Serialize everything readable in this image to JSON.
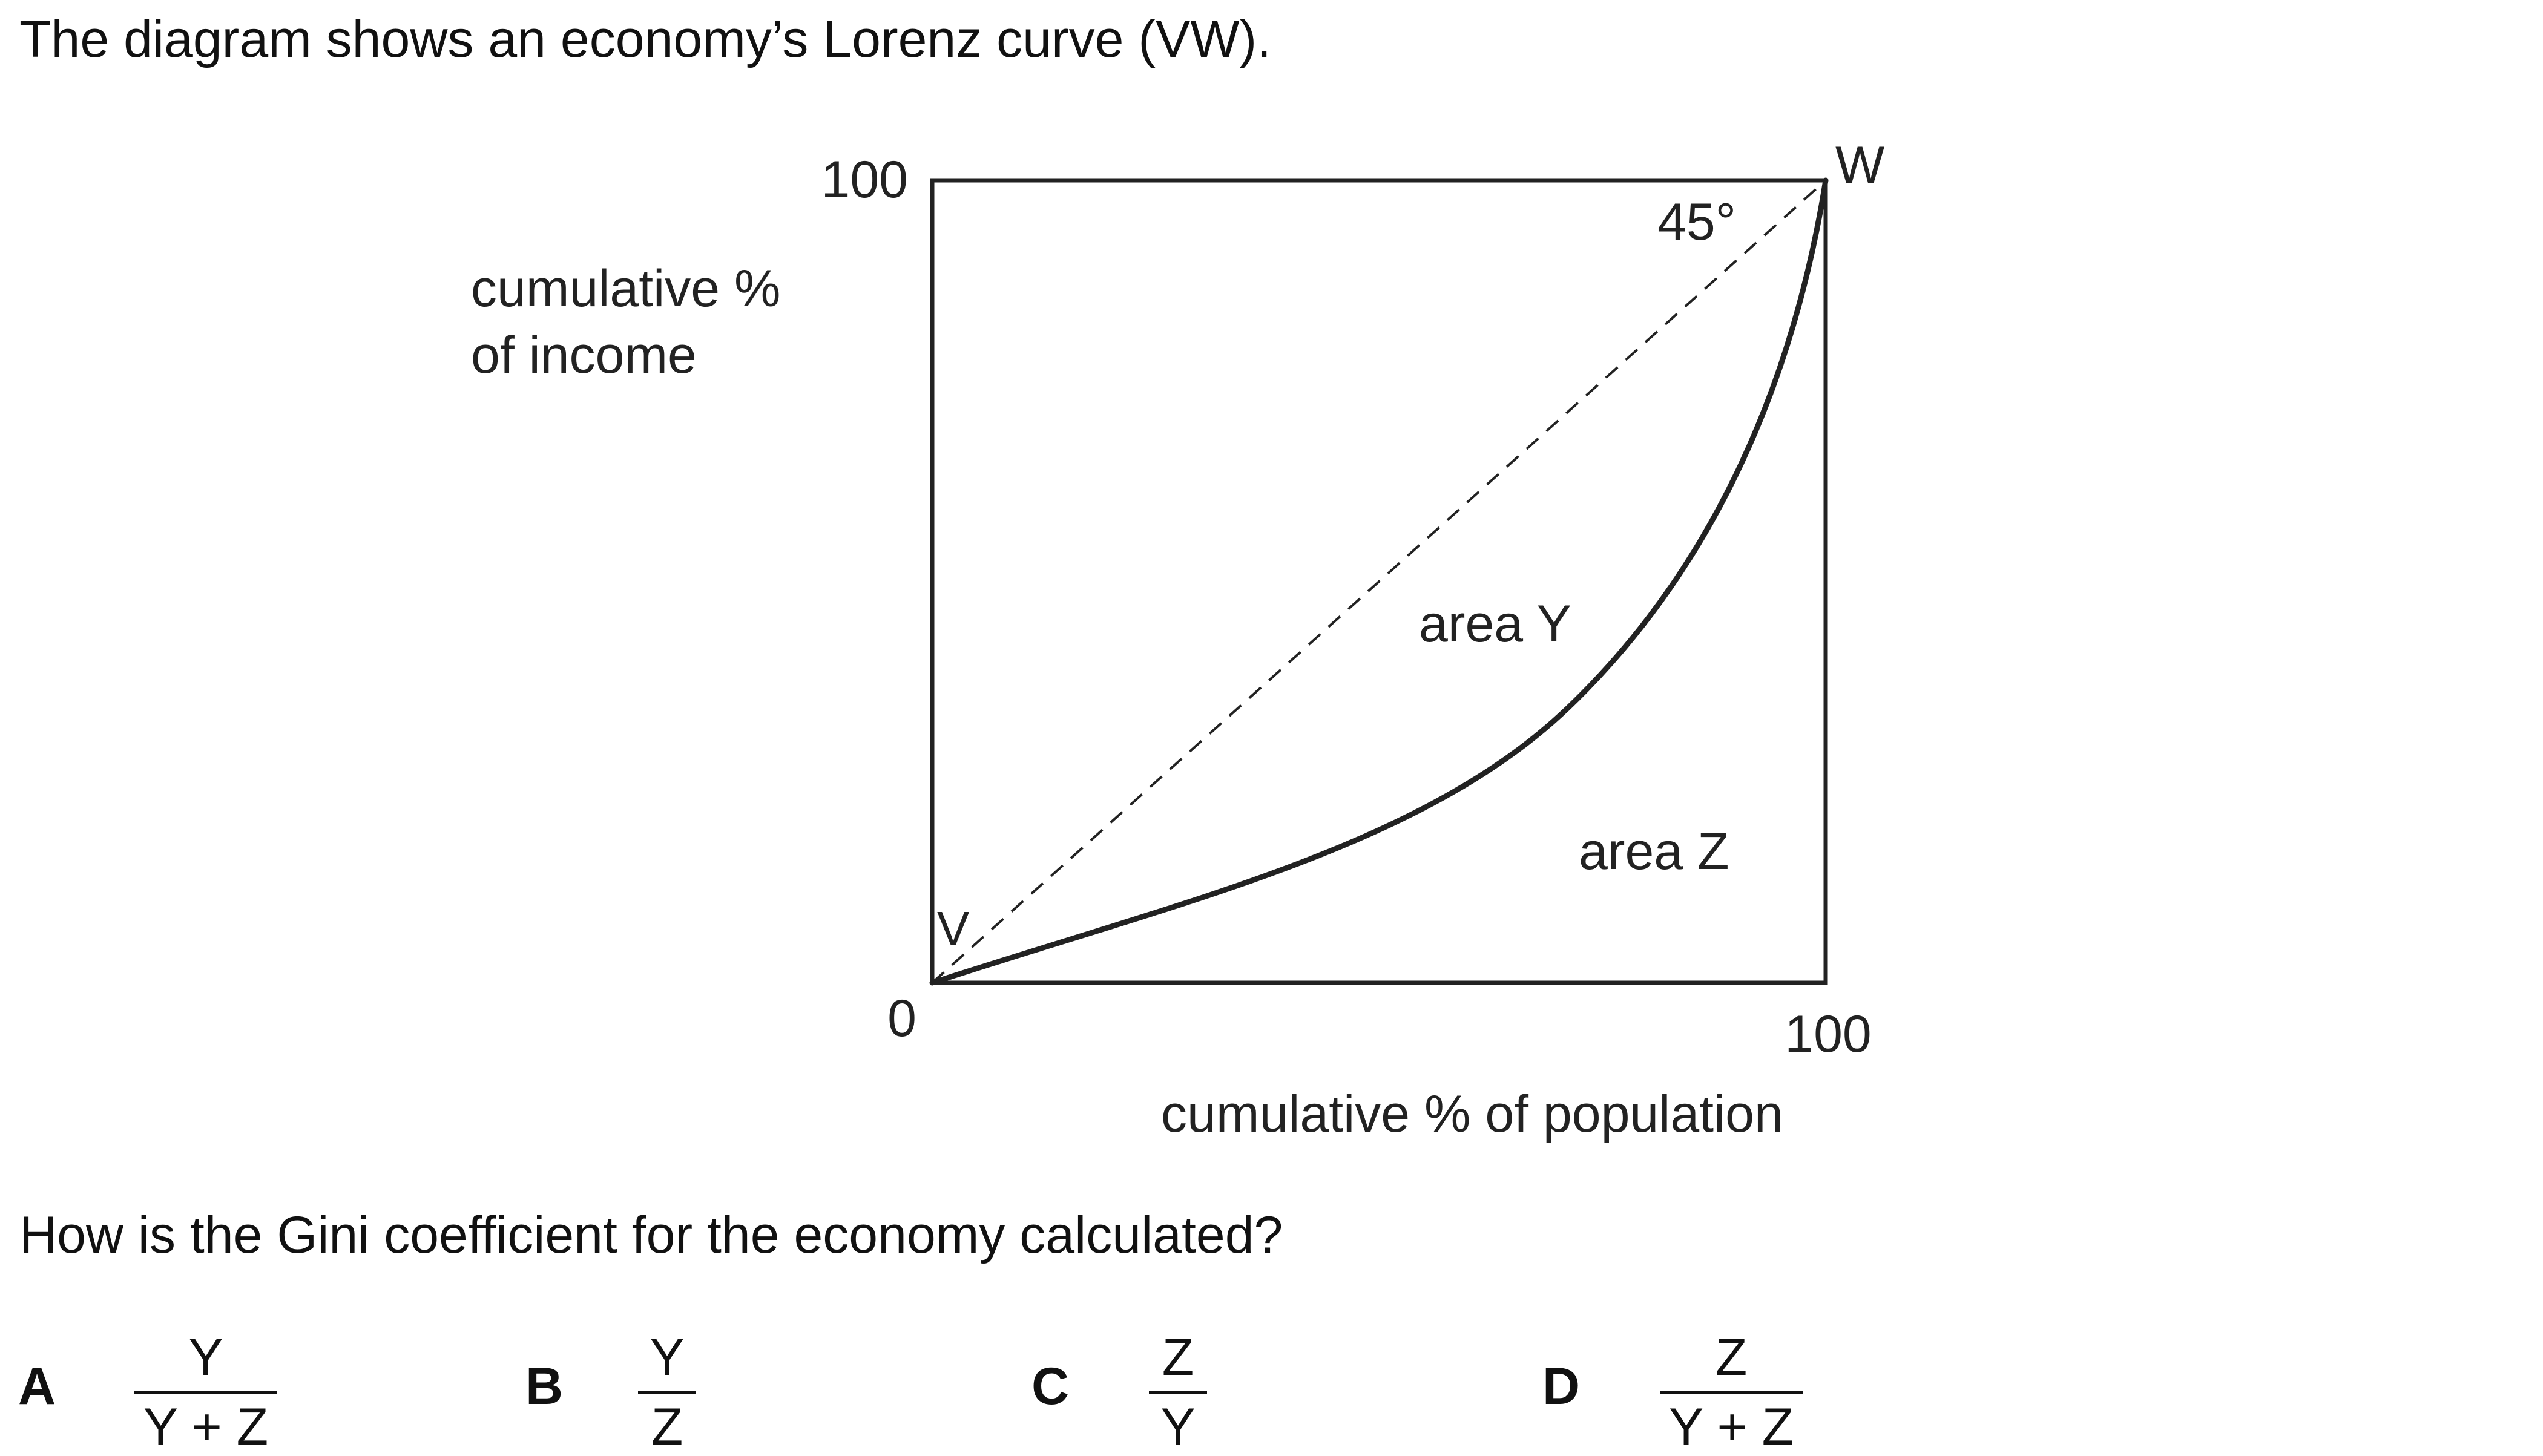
{
  "intro_text": "The diagram shows an economy’s Lorenz curve (VW).",
  "diagram": {
    "y_axis_label_line1": "cumulative %",
    "y_axis_label_line2": "of income",
    "x_axis_label": "cumulative % of population",
    "y_max_label": "100",
    "origin_label": "0",
    "x_max_label": "100",
    "point_v_label": "V",
    "point_w_label": "W",
    "angle_label": "45°",
    "area_y_label": "area Y",
    "area_z_label": "area Z"
  },
  "question_text": "How is the Gini coefficient for the economy calculated?",
  "options": [
    {
      "letter": "A",
      "numerator": "Y",
      "denominator": "Y + Z"
    },
    {
      "letter": "B",
      "numerator": "Y",
      "denominator": "Z"
    },
    {
      "letter": "C",
      "numerator": "Z",
      "denominator": "Y"
    },
    {
      "letter": "D",
      "numerator": "Z",
      "denominator": "Y + Z"
    }
  ]
}
